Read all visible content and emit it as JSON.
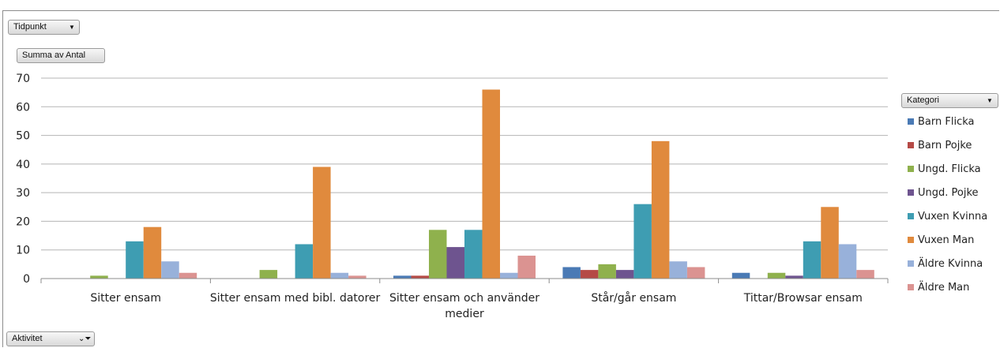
{
  "filters": {
    "time_label": "Tidpunkt",
    "values_label": "Summa av Antal",
    "axis_field_label": "Aktivitet",
    "legend_field_label": "Kategori"
  },
  "chart_data": {
    "type": "bar",
    "categories": [
      "Sitter ensam",
      "Sitter ensam med bibl. datorer",
      "Sitter ensam och använder\nmedier",
      "Står/går ensam",
      "Tittar/Browsar ensam"
    ],
    "series": [
      {
        "name": "Barn Flicka",
        "color": "#4a7ab5",
        "values": [
          0,
          0,
          1,
          4,
          2
        ]
      },
      {
        "name": "Barn Pojke",
        "color": "#b54a46",
        "values": [
          0,
          0,
          1,
          3,
          0
        ]
      },
      {
        "name": "Ungd. Flicka",
        "color": "#8fb14d",
        "values": [
          1,
          3,
          17,
          5,
          2
        ]
      },
      {
        "name": "Ungd. Pojke",
        "color": "#6e548f",
        "values": [
          0,
          0,
          11,
          3,
          1
        ]
      },
      {
        "name": "Vuxen Kvinna",
        "color": "#3e9db2",
        "values": [
          13,
          12,
          17,
          26,
          13
        ]
      },
      {
        "name": "Vuxen Man",
        "color": "#e08a3d",
        "values": [
          18,
          39,
          66,
          48,
          25
        ]
      },
      {
        "name": "Äldre Kvinna",
        "color": "#98b1da",
        "values": [
          6,
          2,
          2,
          6,
          12
        ]
      },
      {
        "name": "Äldre Man",
        "color": "#db9391",
        "values": [
          2,
          1,
          8,
          4,
          3
        ]
      }
    ],
    "ylim": [
      0,
      70
    ],
    "yticks": [
      0,
      10,
      20,
      30,
      40,
      50,
      60,
      70
    ],
    "grid": true,
    "legend_position": "right"
  }
}
